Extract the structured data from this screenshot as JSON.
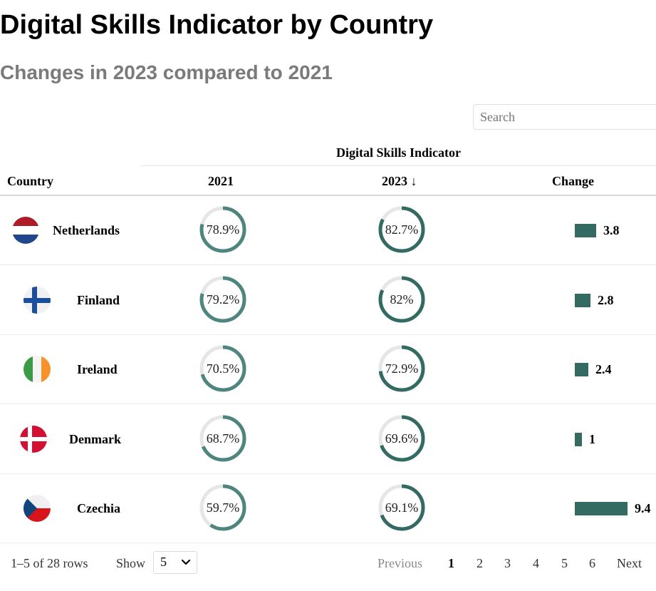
{
  "header": {
    "title": "Digital Skills Indicator by Country",
    "subtitle": "Changes in 2023 compared to 2021"
  },
  "search": {
    "placeholder": "Search"
  },
  "table": {
    "group_header": "Digital Skills Indicator",
    "columns": {
      "country": "Country",
      "y2021": "2021",
      "y2023": "2023 ↓",
      "change": "Change"
    },
    "rows": [
      {
        "country": "Netherlands",
        "flag": "netherlands-flag",
        "v2021": 78.9,
        "v2021_label": "78.9%",
        "v2023": 82.7,
        "v2023_label": "82.7%",
        "change": 3.8,
        "change_label": "3.8"
      },
      {
        "country": "Finland",
        "flag": "finland-flag",
        "v2021": 79.2,
        "v2021_label": "79.2%",
        "v2023": 82,
        "v2023_label": "82%",
        "change": 2.8,
        "change_label": "2.8"
      },
      {
        "country": "Ireland",
        "flag": "ireland-flag",
        "v2021": 70.5,
        "v2021_label": "70.5%",
        "v2023": 72.9,
        "v2023_label": "72.9%",
        "change": 2.4,
        "change_label": "2.4"
      },
      {
        "country": "Denmark",
        "flag": "denmark-flag",
        "v2021": 68.7,
        "v2021_label": "68.7%",
        "v2023": 69.6,
        "v2023_label": "69.6%",
        "change": 1,
        "change_label": "1"
      },
      {
        "country": "Czechia",
        "flag": "czechia-flag",
        "v2021": 59.7,
        "v2021_label": "59.7%",
        "v2023": 69.1,
        "v2023_label": "69.1%",
        "change": 9.4,
        "change_label": "9.4"
      }
    ]
  },
  "colors": {
    "ring_fill_dark": "#336a62",
    "ring_fill_light": "#4e857e",
    "ring_track": "#e6e6e6",
    "bar": "#336a62"
  },
  "footer": {
    "row_info": "1–5 of 28 rows",
    "show_label": "Show",
    "page_size": "5",
    "prev": "Previous",
    "pages": [
      "1",
      "2",
      "3",
      "4",
      "5",
      "6"
    ],
    "current_page": "1",
    "next": "Next"
  }
}
